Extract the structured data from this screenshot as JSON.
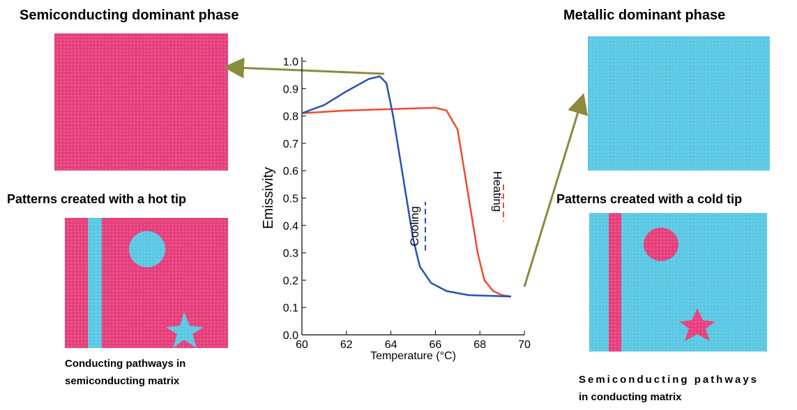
{
  "chart_data": {
    "type": "line",
    "x_label": "Temperature (°C)",
    "y_label": "Emissivity",
    "xlim": [
      60,
      70
    ],
    "xticks": [
      60,
      62,
      64,
      66,
      68,
      70
    ],
    "ylim": [
      0,
      1.0
    ],
    "yticks": [
      {
        "value": 0,
        "label": "0.0"
      },
      {
        "value": 0.1,
        "label": "0.1"
      },
      {
        "value": 0.2,
        "label": "0.2"
      },
      {
        "value": 0.3,
        "label": "0.3"
      },
      {
        "value": 0.4,
        "label": "0.4"
      },
      {
        "value": 0.5,
        "label": "0.5"
      },
      {
        "value": 0.6,
        "label": "0.6"
      },
      {
        "value": 0.7,
        "label": "0.7"
      },
      {
        "value": 0.8,
        "label": "0.8"
      },
      {
        "value": 0.9,
        "label": "0.9"
      },
      {
        "value": 1.0,
        "label": "1.0"
      }
    ],
    "series": [
      {
        "name": "Heating",
        "color": "#f04a2a",
        "x": [
          60,
          62,
          64,
          66,
          66.5,
          67,
          67.3,
          67.6,
          67.9,
          68.2,
          68.6,
          69,
          69.4
        ],
        "values": [
          0.81,
          0.82,
          0.825,
          0.83,
          0.82,
          0.75,
          0.6,
          0.45,
          0.3,
          0.2,
          0.16,
          0.145,
          0.14
        ]
      },
      {
        "name": "Cooling",
        "color": "#2451b5",
        "x": [
          60,
          61,
          62,
          63,
          63.5,
          63.8,
          64.1,
          64.4,
          64.7,
          65,
          65.3,
          65.8,
          66.5,
          67.5,
          69.4
        ],
        "values": [
          0.81,
          0.84,
          0.89,
          0.935,
          0.945,
          0.92,
          0.8,
          0.65,
          0.5,
          0.35,
          0.25,
          0.19,
          0.16,
          0.145,
          0.14
        ]
      }
    ]
  },
  "panels": {
    "left_title": "Semiconducting dominant phase",
    "right_title": "Metallic dominant phase",
    "left_subtitle": "Patterns created with a hot tip",
    "right_subtitle": "Patterns created with a cold tip",
    "left_caption": [
      "Conducting pathways in",
      "semiconducting matrix"
    ],
    "right_caption": [
      "Semiconducting pathways",
      "in conducting matrix"
    ]
  }
}
